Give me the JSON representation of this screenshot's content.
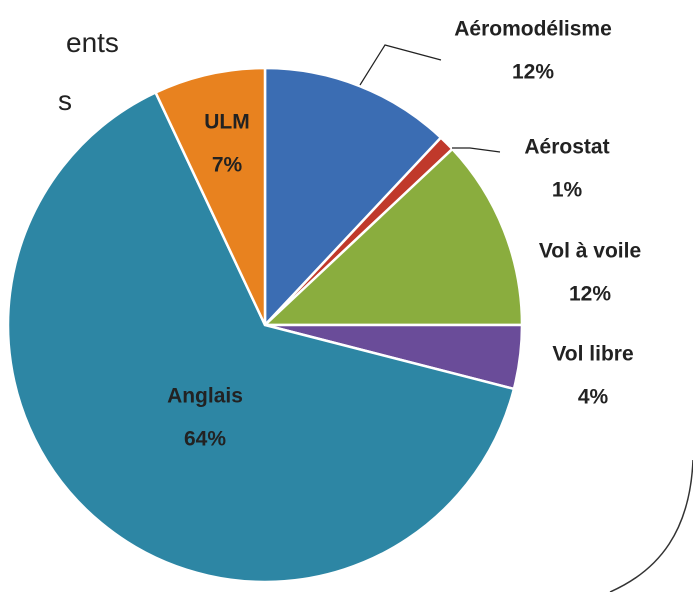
{
  "chart_data": {
    "type": "pie",
    "categories": [
      "Aéromodélisme",
      "Aérostat",
      "Vol à voile",
      "Vol libre",
      "Anglais",
      "ULM"
    ],
    "values": [
      12,
      1,
      12,
      4,
      64,
      7
    ],
    "value_labels": [
      "12%",
      "1%",
      "12%",
      "4%",
      "64%",
      "7%"
    ],
    "colors": [
      "#3b6db3",
      "#c0392b",
      "#8aad3e",
      "#6a4c99",
      "#2d86a4",
      "#e8821f"
    ],
    "annotations": [
      "ents",
      "s"
    ]
  }
}
